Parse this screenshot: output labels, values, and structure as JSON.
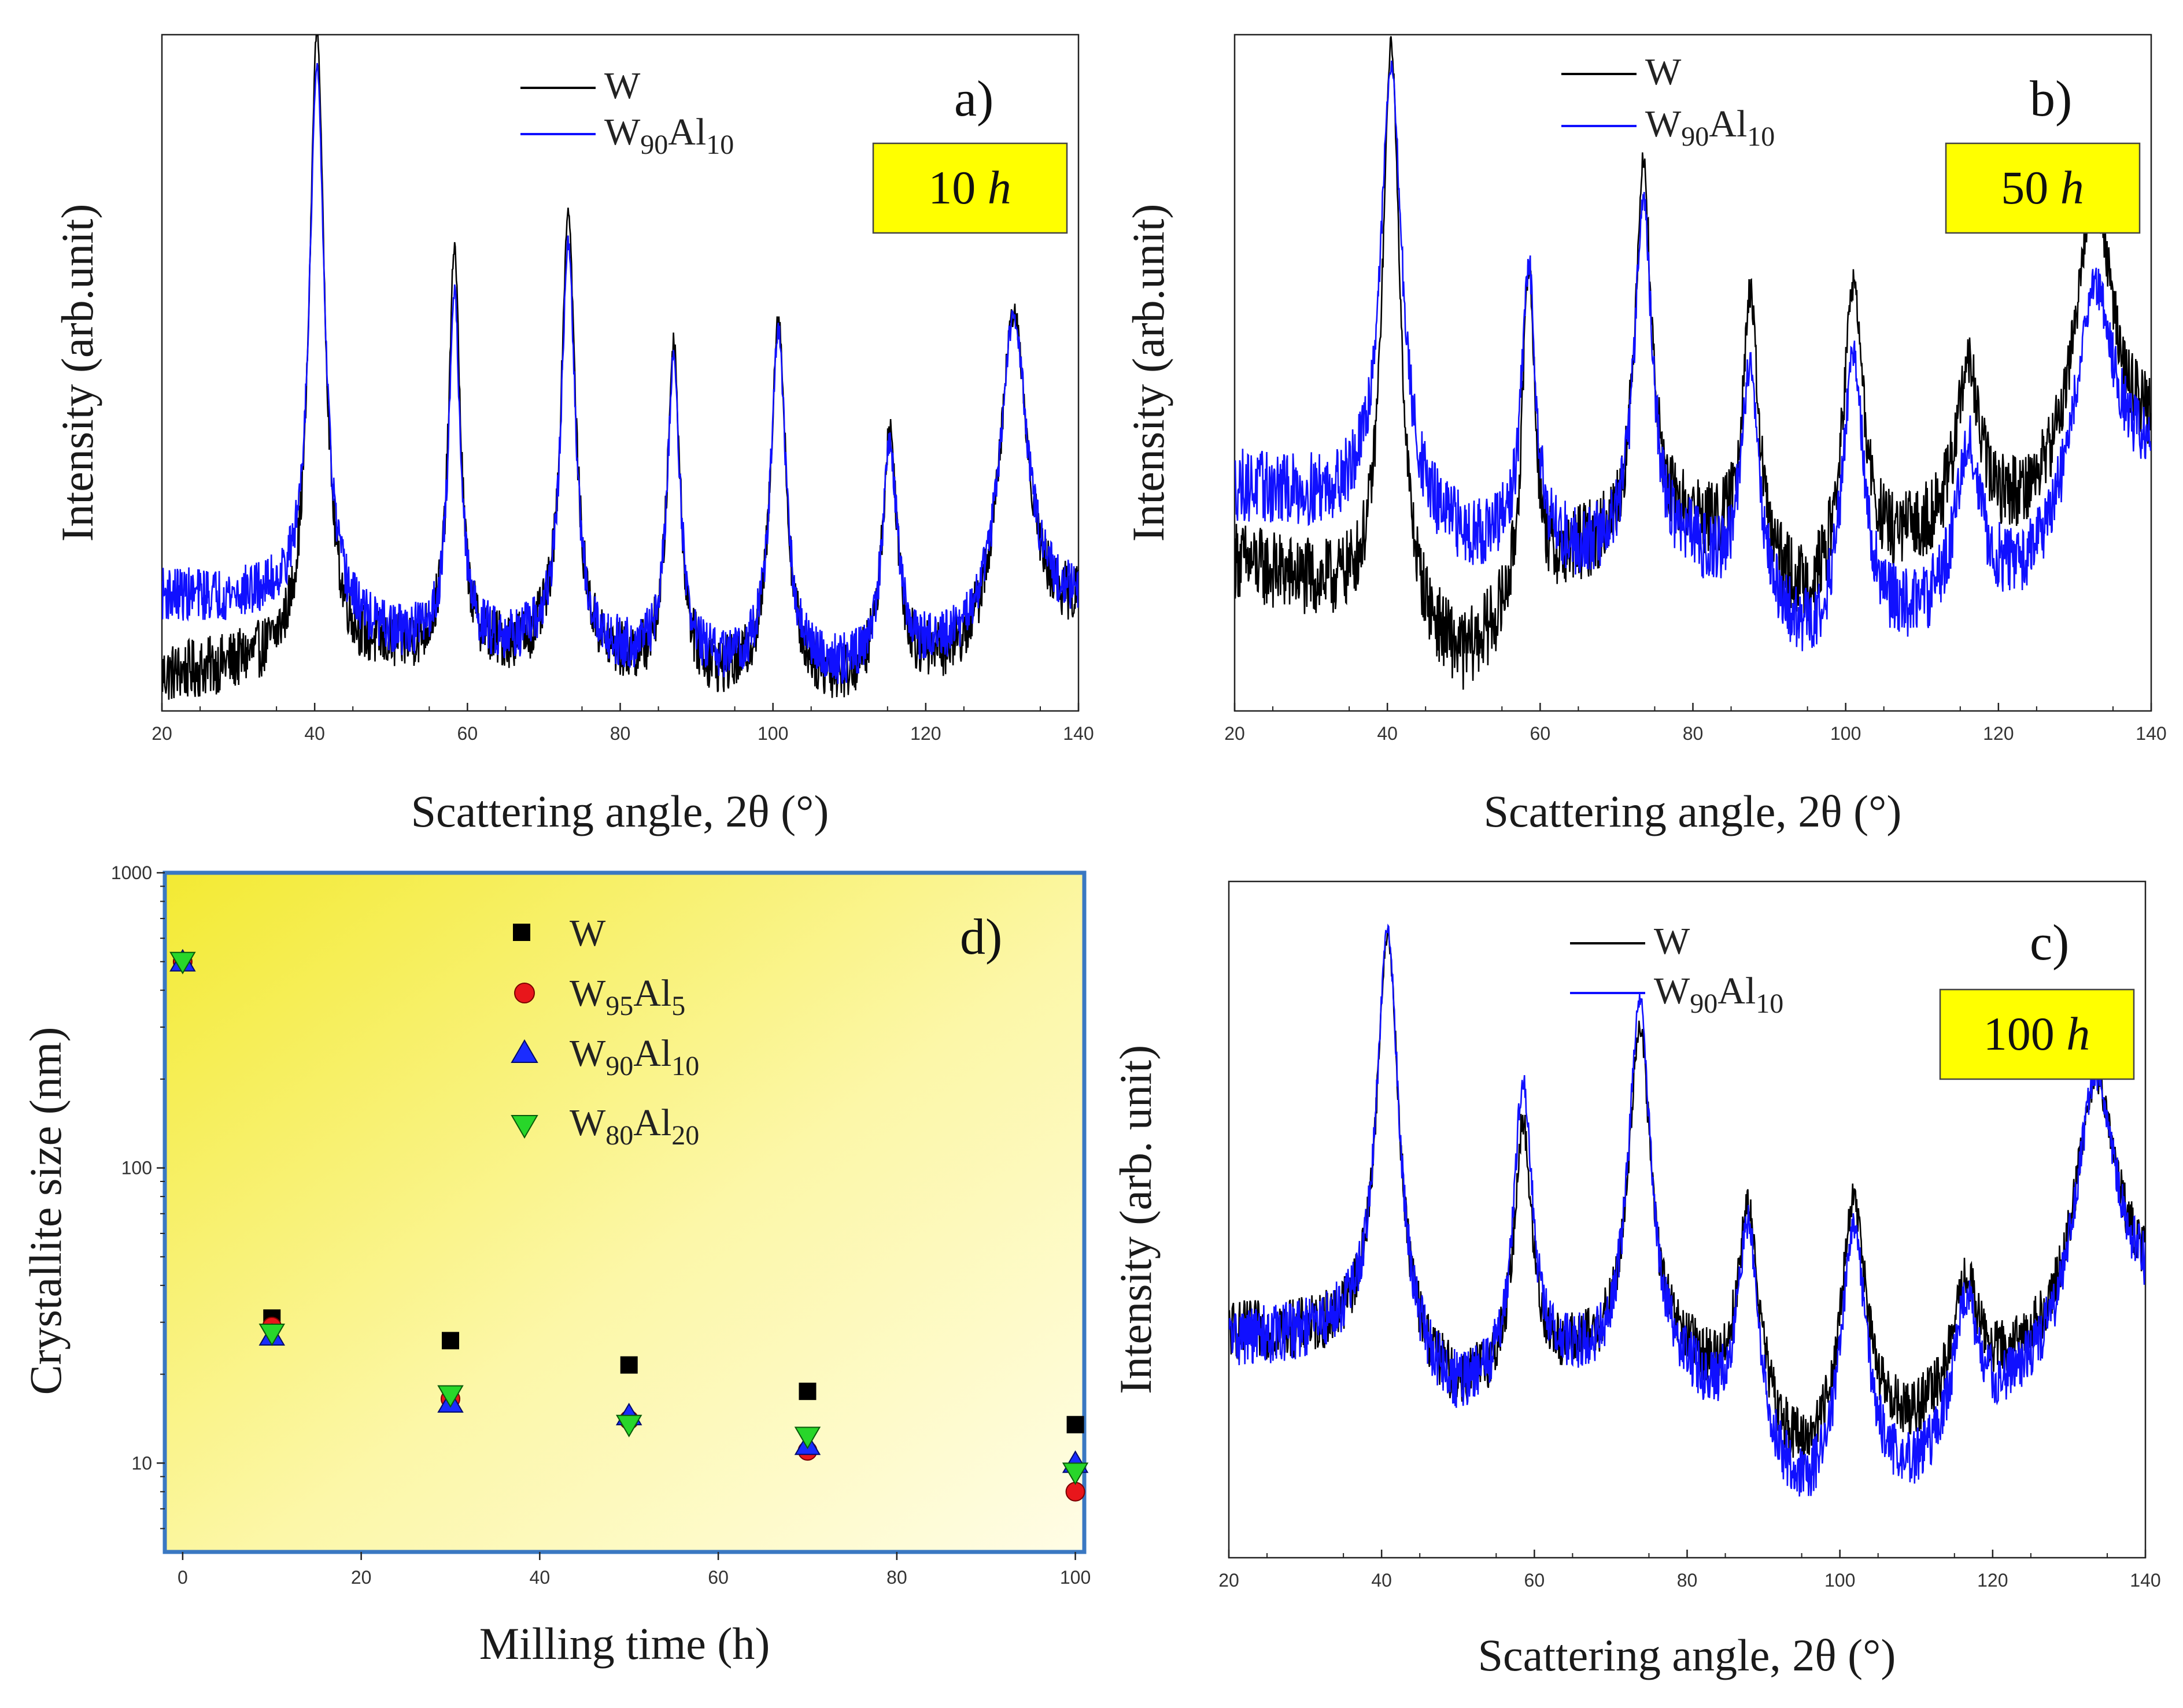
{
  "chart_data": [
    {
      "id": "a",
      "type": "line",
      "panel_label": "a)",
      "time_label": "10 h",
      "time_value": "10",
      "time_unit": "h",
      "xlabel": "Scattering angle, 2θ (°)",
      "ylabel": "Intensity (arb.unit)",
      "xlim": [
        20,
        140
      ],
      "ylim": [
        0,
        1
      ],
      "x_ticks": [
        "20",
        "40",
        "60",
        "80",
        "100",
        "120",
        "140"
      ],
      "series": [
        {
          "name": "W",
          "legend_main": "W",
          "legend_sub": "",
          "legend_sub2": "",
          "color": "#000000",
          "noise": 0.045,
          "baseline": [
            [
              20,
              0.05
            ],
            [
              35,
              0.07
            ],
            [
              50,
              0.08
            ],
            [
              70,
              0.08
            ],
            [
              90,
              0.04
            ],
            [
              110,
              0.03
            ],
            [
              125,
              0.06
            ],
            [
              140,
              0.14
            ]
          ],
          "peaks": [
            [
              40.3,
              0.93,
              1.2
            ],
            [
              58.3,
              0.6,
              0.9
            ],
            [
              73.2,
              0.66,
              1.1
            ],
            [
              87.0,
              0.49,
              1.0
            ],
            [
              100.7,
              0.54,
              1.2
            ],
            [
              115.3,
              0.36,
              1.2
            ],
            [
              131.5,
              0.49,
              2.2
            ]
          ]
        },
        {
          "name": "W90Al10",
          "legend_main": "W",
          "legend_sub": "90",
          "legend_sub2": "10",
          "color": "#1010ff",
          "noise": 0.04,
          "baseline": [
            [
              20,
              0.17
            ],
            [
              35,
              0.16
            ],
            [
              50,
              0.1
            ],
            [
              70,
              0.09
            ],
            [
              90,
              0.06
            ],
            [
              110,
              0.05
            ],
            [
              125,
              0.08
            ],
            [
              140,
              0.15
            ]
          ],
          "peaks": [
            [
              40.3,
              0.81,
              1.2
            ],
            [
              58.3,
              0.52,
              0.9
            ],
            [
              73.2,
              0.6,
              1.1
            ],
            [
              87.0,
              0.45,
              1.0
            ],
            [
              100.7,
              0.5,
              1.2
            ],
            [
              115.3,
              0.32,
              1.2
            ],
            [
              131.5,
              0.47,
              2.2
            ]
          ]
        }
      ]
    },
    {
      "id": "b",
      "type": "line",
      "panel_label": "b)",
      "time_label": "50 h",
      "time_value": "50",
      "time_unit": "h",
      "xlabel": "Scattering angle, 2θ (°)",
      "ylabel": "Intensity (arb.unit)",
      "xlim": [
        20,
        140
      ],
      "ylim": [
        0,
        1
      ],
      "x_ticks": [
        "20",
        "40",
        "60",
        "80",
        "100",
        "120",
        "140"
      ],
      "series": [
        {
          "name": "W",
          "legend_main": "W",
          "legend_sub": "",
          "legend_sub2": "",
          "color": "#000000",
          "noise": 0.06,
          "baseline": [
            [
              20,
              0.22
            ],
            [
              35,
              0.16
            ],
            [
              50,
              0.06
            ],
            [
              65,
              0.22
            ],
            [
              80,
              0.26
            ],
            [
              95,
              0.14
            ],
            [
              110,
              0.24
            ],
            [
              125,
              0.28
            ],
            [
              140,
              0.38
            ]
          ],
          "peaks": [
            [
              40.5,
              0.86,
              1.4
            ],
            [
              58.5,
              0.5,
              1.0
            ],
            [
              73.5,
              0.56,
              1.3
            ],
            [
              87.5,
              0.4,
              1.3
            ],
            [
              101.0,
              0.44,
              1.6
            ],
            [
              116.0,
              0.24,
              1.8
            ],
            [
              132.5,
              0.43,
              3.0
            ]
          ]
        },
        {
          "name": "W90Al10",
          "legend_main": "W",
          "legend_sub": "90",
          "legend_sub2": "10",
          "color": "#1010ff",
          "noise": 0.055,
          "baseline": [
            [
              20,
              0.33
            ],
            [
              35,
              0.3
            ],
            [
              50,
              0.24
            ],
            [
              65,
              0.22
            ],
            [
              80,
              0.22
            ],
            [
              95,
              0.08
            ],
            [
              110,
              0.12
            ],
            [
              125,
              0.18
            ],
            [
              140,
              0.35
            ]
          ],
          "peaks": [
            [
              40.5,
              0.67,
              1.7
            ],
            [
              58.5,
              0.42,
              1.1
            ],
            [
              73.5,
              0.53,
              1.4
            ],
            [
              87.5,
              0.35,
              1.4
            ],
            [
              101.0,
              0.42,
              1.7
            ],
            [
              116.0,
              0.24,
              1.9
            ],
            [
              132.5,
              0.36,
              3.2
            ]
          ]
        }
      ]
    },
    {
      "id": "c",
      "type": "line",
      "panel_label": "c)",
      "time_label": "100 h",
      "time_value": "100",
      "time_unit": "h",
      "xlabel": "Scattering angle, 2θ (°)",
      "ylabel": "Intensity (arb. unit)",
      "xlim": [
        20,
        140
      ],
      "ylim": [
        0,
        1
      ],
      "x_ticks": [
        "20",
        "40",
        "60",
        "80",
        "100",
        "120",
        "140"
      ],
      "series": [
        {
          "name": "W",
          "legend_main": "W",
          "legend_sub": "",
          "legend_sub2": "",
          "color": "#000000",
          "noise": 0.045,
          "baseline": [
            [
              20,
              0.33
            ],
            [
              35,
              0.32
            ],
            [
              50,
              0.23
            ],
            [
              65,
              0.28
            ],
            [
              80,
              0.27
            ],
            [
              95,
              0.12
            ],
            [
              110,
              0.18
            ],
            [
              125,
              0.28
            ],
            [
              140,
              0.38
            ]
          ],
          "peaks": [
            [
              40.8,
              0.63,
              1.8
            ],
            [
              58.5,
              0.37,
              1.4
            ],
            [
              73.8,
              0.5,
              1.8
            ],
            [
              88.0,
              0.31,
              1.7
            ],
            [
              101.8,
              0.37,
              2.0
            ],
            [
              116.5,
              0.17,
              2.0
            ],
            [
              133.5,
              0.37,
              3.2
            ]
          ]
        },
        {
          "name": "W90Al10",
          "legend_main": "W",
          "legend_sub": "90",
          "legend_sub2": "10",
          "color": "#1010ff",
          "noise": 0.045,
          "baseline": [
            [
              20,
              0.32
            ],
            [
              35,
              0.32
            ],
            [
              50,
              0.22
            ],
            [
              65,
              0.27
            ],
            [
              80,
              0.24
            ],
            [
              95,
              0.06
            ],
            [
              110,
              0.1
            ],
            [
              125,
              0.24
            ],
            [
              140,
              0.36
            ]
          ],
          "peaks": [
            [
              40.8,
              0.64,
              1.8
            ],
            [
              58.5,
              0.44,
              1.5
            ],
            [
              73.8,
              0.56,
              1.8
            ],
            [
              88.0,
              0.33,
              1.7
            ],
            [
              101.8,
              0.4,
              2.0
            ],
            [
              116.5,
              0.2,
              2.0
            ],
            [
              133.5,
              0.4,
              3.2
            ]
          ]
        }
      ]
    },
    {
      "id": "d",
      "type": "scatter",
      "panel_label": "d)",
      "xlabel": "Milling time (h)",
      "ylabel": "Crystallite size (nm)",
      "xlim": [
        -2,
        101
      ],
      "ylim": [
        5,
        1000
      ],
      "yscale": "log",
      "x_ticks": [
        0,
        20,
        40,
        60,
        80,
        100
      ],
      "y_ticks": [
        10,
        100,
        1000
      ],
      "series": [
        {
          "name": "W",
          "legend_main": "W",
          "legend_sub": "",
          "legend_sub2": "",
          "marker": "square",
          "color": "#000000",
          "points": [
            [
              0,
              500
            ],
            [
              10,
              31
            ],
            [
              30,
              26
            ],
            [
              50,
              21.5
            ],
            [
              70,
              17.5
            ],
            [
              100,
              13.5
            ]
          ]
        },
        {
          "name": "W95Al5",
          "legend_main": "W",
          "legend_sub": "95",
          "legend_sub2": "5",
          "marker": "circle",
          "color": "#e8161b",
          "points": [
            [
              0,
              500
            ],
            [
              10,
              29
            ],
            [
              30,
              16.5
            ],
            [
              50,
              14
            ],
            [
              70,
              11
            ],
            [
              100,
              8
            ]
          ]
        },
        {
          "name": "W90Al10",
          "legend_main": "W",
          "legend_sub": "90",
          "legend_sub2": "10",
          "marker": "triangle-up",
          "color": "#1a2cff",
          "points": [
            [
              0,
              500
            ],
            [
              10,
              27
            ],
            [
              30,
              16
            ],
            [
              50,
              14.5
            ],
            [
              70,
              11.5
            ],
            [
              100,
              10
            ]
          ]
        },
        {
          "name": "W80Al20",
          "legend_main": "W",
          "legend_sub": "80",
          "legend_sub2": "20",
          "marker": "triangle-down",
          "color": "#28d62a",
          "points": [
            [
              0,
              500
            ],
            [
              10,
              27.5
            ],
            [
              30,
              17
            ],
            [
              50,
              13.5
            ],
            [
              70,
              12.3
            ],
            [
              100,
              9.3
            ]
          ]
        }
      ]
    }
  ]
}
